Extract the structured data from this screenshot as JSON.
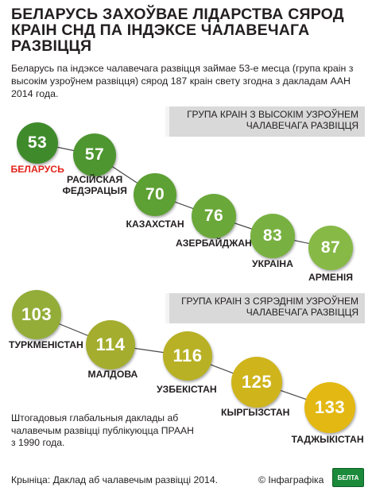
{
  "header": {
    "title_lines": [
      "БЕЛАРУСЬ ЗАХОЎВАЕ ЛІДАРСТВА СЯРОД",
      "КРАІН СНД ПА ІНДЭКСЕ ЧАЛАВЕЧАГА",
      "РАЗВІЦЦЯ"
    ],
    "subtitle": "Беларусь па індэксе чалавечага развіцця займае 53-е месца (група краін з высокім узроўнем развіцця) сярод 187 краін свету згодна з дакладам ААН 2014 года."
  },
  "groups": [
    {
      "lines": [
        "ГРУПА КРАІН З ВЫСОКІМ УЗРОЎНЕМ",
        "ЧАЛАВЕЧАГА РАЗВІЦЦЯ"
      ]
    },
    {
      "lines": [
        "ГРУПА КРАІН З СЯРЭДНІМ УЗРОЎНЕМ",
        "ЧАЛАВЕЧАГА РАЗВІЦЦЯ"
      ]
    }
  ],
  "countries": [
    {
      "rank": "53",
      "name_lines": [
        "БЕЛАРУСЬ"
      ],
      "color": "#3f8b2c",
      "label_color": "#e2231a"
    },
    {
      "rank": "57",
      "name_lines": [
        "РАСІЙСКАЯ",
        "ФЕДЭРАЦЫЯ"
      ],
      "color": "#4e9630",
      "label_color": "#231f20"
    },
    {
      "rank": "70",
      "name_lines": [
        "КАЗАХСТАН"
      ],
      "color": "#5da033",
      "label_color": "#231f20"
    },
    {
      "rank": "76",
      "name_lines": [
        "АЗЕРБАЙДЖАН"
      ],
      "color": "#6aa83a",
      "label_color": "#231f20"
    },
    {
      "rank": "83",
      "name_lines": [
        "УКРАІНА"
      ],
      "color": "#78b141",
      "label_color": "#231f20"
    },
    {
      "rank": "87",
      "name_lines": [
        "АРМЕНІЯ"
      ],
      "color": "#86b946",
      "label_color": "#231f20"
    },
    {
      "rank": "103",
      "name_lines": [
        "ТУРКМЕНІСТАН"
      ],
      "color": "#93ad38",
      "label_color": "#231f20"
    },
    {
      "rank": "114",
      "name_lines": [
        "МАЛДОВА"
      ],
      "color": "#a4ad2e",
      "label_color": "#231f20"
    },
    {
      "rank": "116",
      "name_lines": [
        "УЗБЕКІСТАН"
      ],
      "color": "#b8b125",
      "label_color": "#231f20"
    },
    {
      "rank": "125",
      "name_lines": [
        "КЫРГЫЗСТАН"
      ],
      "color": "#cfb41c",
      "label_color": "#231f20"
    },
    {
      "rank": "133",
      "name_lines": [
        "ТАДЖЫКІСТАН"
      ],
      "color": "#e3b812",
      "label_color": "#231f20"
    }
  ],
  "note_lines": [
    "Штогадовыя глабальныя даклады аб",
    "чалавечым развіцці публікуюцца ПРААН",
    "з 1990 года."
  ],
  "footer": {
    "source": "Крыніца: Даклад аб чалавечым развіцці 2014.",
    "credit": "© Інфаграфіка",
    "logo": "БЕЛТА"
  }
}
